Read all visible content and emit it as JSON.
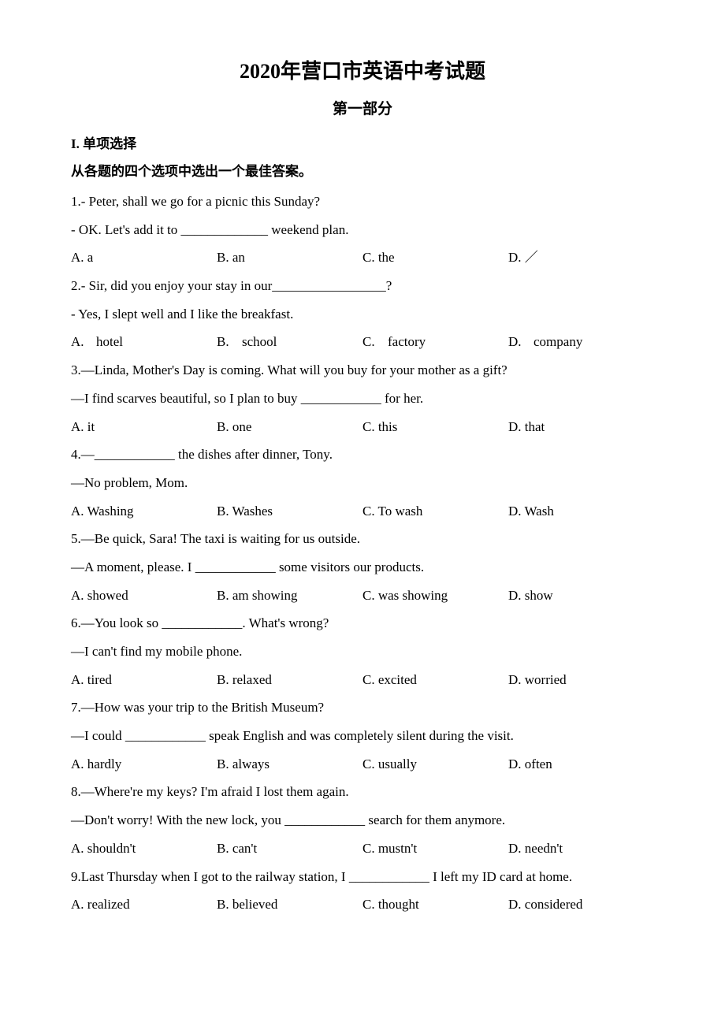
{
  "title": "2020年营口市英语中考试题",
  "subtitle": "第一部分",
  "section_label": "I. 单项选择",
  "instruction": "从各题的四个选项中选出一个最佳答案。",
  "questions": [
    {
      "num": "1.",
      "lines": [
        "- Peter, shall we go for a picnic this Sunday?",
        "- OK. Let's add it to _____________ weekend plan."
      ],
      "options": {
        "A": "a",
        "B": "an",
        "C": "the",
        "D": "／"
      }
    },
    {
      "num": "2.",
      "lines": [
        "- Sir, did you enjoy your stay in our_________________?",
        "- Yes, I slept well and I like the breakfast."
      ],
      "options_wide": true,
      "options": {
        "A": "hotel",
        "B": "school",
        "C": "factory",
        "D": "company"
      }
    },
    {
      "num": "3.",
      "lines": [
        "—Linda, Mother's Day is coming. What will you buy for your mother as a gift?",
        "—I find scarves beautiful, so I plan to buy ____________ for her."
      ],
      "options": {
        "A": "it",
        "B": "one",
        "C": "this",
        "D": "that"
      }
    },
    {
      "num": "4.",
      "lines": [
        "—____________ the dishes after dinner, Tony.",
        "—No problem, Mom."
      ],
      "options": {
        "A": "Washing",
        "B": "Washes",
        "C": "To wash",
        "D": "Wash"
      }
    },
    {
      "num": "5.",
      "lines": [
        "—Be quick, Sara! The taxi is waiting for us outside.",
        "—A moment, please. I ____________ some visitors our products."
      ],
      "options": {
        "A": "showed",
        "B": "am showing",
        "C": "was showing",
        "D": "show"
      }
    },
    {
      "num": "6.",
      "lines": [
        "—You look so ____________. What's wrong?",
        "—I can't find my mobile phone."
      ],
      "options": {
        "A": "tired",
        "B": "relaxed",
        "C": "excited",
        "D": "worried"
      }
    },
    {
      "num": "7.",
      "lines": [
        "—How was your trip to the British Museum?",
        "—I could ____________ speak English and was completely silent during the visit."
      ],
      "options": {
        "A": "hardly",
        "B": "always",
        "C": "usually",
        "D": "often"
      }
    },
    {
      "num": "8.",
      "lines": [
        "—Where're my keys? I'm afraid I lost them again.",
        "—Don't worry! With the new lock, you ____________ search for them anymore."
      ],
      "options": {
        "A": "shouldn't",
        "B": "can't",
        "C": "mustn't",
        "D": "needn't"
      }
    },
    {
      "num": "9.",
      "lines": [
        "Last Thursday when I got to the railway station, I ____________ I left my ID card at home."
      ],
      "options": {
        "A": "realized",
        "B": "believed",
        "C": "thought",
        "D": "considered"
      }
    }
  ]
}
